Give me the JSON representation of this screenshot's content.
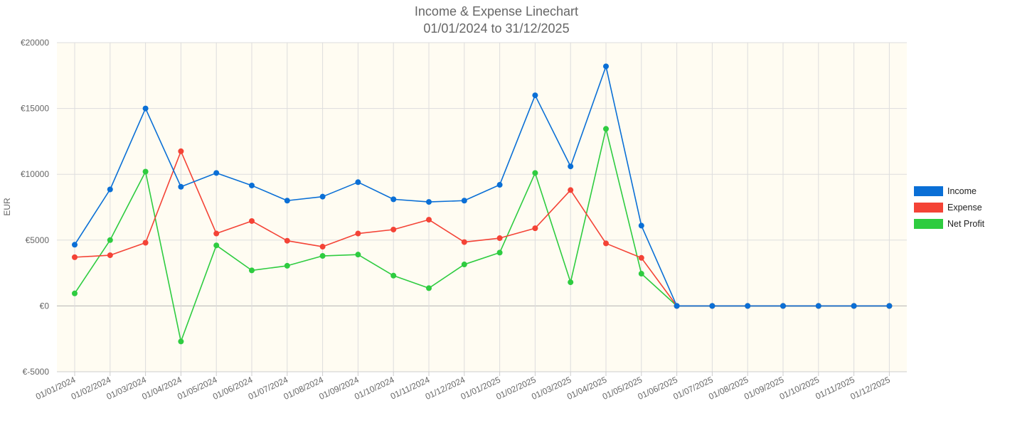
{
  "chart_data": {
    "type": "line",
    "title": "Income & Expense Linechart",
    "subtitle": "01/01/2024 to 31/12/2025",
    "ylabel": "EUR",
    "xlabel": "",
    "ylim": [
      -5000,
      20000
    ],
    "y_ticks": [
      -5000,
      0,
      5000,
      10000,
      15000,
      20000
    ],
    "y_tick_labels": [
      "€-5000",
      "€0",
      "€5000",
      "€10000",
      "€15000",
      "€20000"
    ],
    "grid": true,
    "legend_position": "right",
    "background_color": "#fffcf2",
    "categories": [
      "01/01/2024",
      "01/02/2024",
      "01/03/2024",
      "01/04/2024",
      "01/05/2024",
      "01/06/2024",
      "01/07/2024",
      "01/08/2024",
      "01/09/2024",
      "01/10/2024",
      "01/11/2024",
      "01/12/2024",
      "01/01/2025",
      "01/02/2025",
      "01/03/2025",
      "01/04/2025",
      "01/05/2025",
      "01/06/2025",
      "01/07/2025",
      "01/08/2025",
      "01/09/2025",
      "01/10/2025",
      "01/11/2025",
      "01/12/2025"
    ],
    "series": [
      {
        "name": "Net Profit",
        "color": "#2ecc40",
        "values": [
          950,
          5000,
          10200,
          -2700,
          4600,
          2700,
          3050,
          3800,
          3900,
          2300,
          1350,
          3150,
          4050,
          10100,
          1800,
          13450,
          2450,
          0,
          0,
          0,
          0,
          0,
          0,
          0
        ]
      },
      {
        "name": "Expense",
        "color": "#f44336",
        "values": [
          3700,
          3850,
          4800,
          11750,
          5500,
          6450,
          4950,
          4500,
          5500,
          5800,
          6550,
          4850,
          5150,
          5900,
          8800,
          4750,
          3650,
          0,
          0,
          0,
          0,
          0,
          0,
          0
        ]
      },
      {
        "name": "Income",
        "color": "#0a6fd6",
        "values": [
          4650,
          8850,
          15000,
          9050,
          10100,
          9150,
          8000,
          8300,
          9400,
          8100,
          7900,
          8000,
          9200,
          16000,
          10600,
          18200,
          6100,
          0,
          0,
          0,
          0,
          0,
          0,
          0
        ]
      }
    ],
    "legend": [
      {
        "name": "Income",
        "color": "#0a6fd6"
      },
      {
        "name": "Expense",
        "color": "#f44336"
      },
      {
        "name": "Net Profit",
        "color": "#2ecc40"
      }
    ]
  }
}
